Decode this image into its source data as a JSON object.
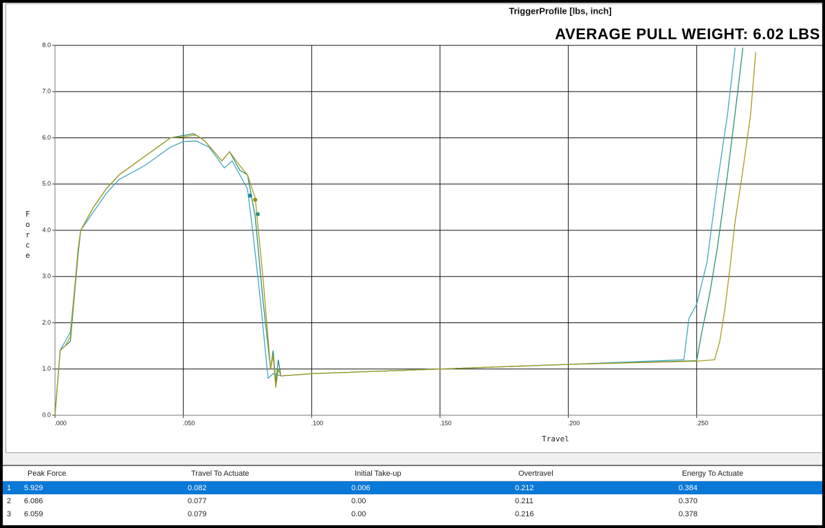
{
  "chart_data": {
    "type": "line",
    "title": "TriggerProfile [lbs, inch]",
    "annotation": "AVERAGE PULL WEIGHT: 6.02 LBS",
    "x_label": "Travel",
    "y_label": "Force",
    "xlim": [
      0,
      0.3
    ],
    "ylim": [
      0,
      8
    ],
    "xticks": [
      {
        "value": 0,
        "label": ".000"
      },
      {
        "value": 0.05,
        "label": ".050"
      },
      {
        "value": 0.1,
        "label": ".100"
      },
      {
        "value": 0.15,
        "label": ".150"
      },
      {
        "value": 0.2,
        "label": ".200"
      },
      {
        "value": 0.25,
        "label": ".250"
      }
    ],
    "yticks": [
      {
        "value": 0,
        "label": "0.0"
      },
      {
        "value": 1,
        "label": "1.0"
      },
      {
        "value": 2,
        "label": "2.0"
      },
      {
        "value": 3,
        "label": "3.0"
      },
      {
        "value": 4,
        "label": "4.0"
      },
      {
        "value": 5,
        "label": "5.0"
      },
      {
        "value": 6,
        "label": "6.0"
      },
      {
        "value": 7,
        "label": "7.0"
      },
      {
        "value": 8,
        "label": "8.0"
      }
    ],
    "grid": true,
    "series": [
      {
        "color": "#41a6bf",
        "x": [
          0,
          0.002,
          0.004,
          0.006,
          0.009,
          0.01,
          0.015,
          0.02,
          0.025,
          0.03,
          0.035,
          0.04,
          0.045,
          0.05,
          0.055,
          0.06,
          0.064,
          0.066,
          0.069,
          0.072,
          0.075,
          0.077,
          0.08,
          0.083,
          0.085,
          0.088,
          0.1,
          0.15,
          0.2,
          0.245,
          0.247,
          0.25,
          0.254,
          0.258,
          0.262,
          0.265
        ],
        "values": [
          0,
          1.4,
          1.6,
          1.8,
          3.5,
          4.0,
          4.4,
          4.8,
          5.1,
          5.25,
          5.4,
          5.6,
          5.8,
          5.92,
          5.93,
          5.8,
          5.5,
          5.35,
          5.5,
          5.2,
          4.9,
          4.0,
          2.5,
          0.8,
          0.9,
          0.85,
          0.9,
          1.0,
          1.1,
          1.2,
          2.1,
          2.4,
          3.3,
          5.0,
          6.5,
          7.95
        ]
      },
      {
        "color": "#2a8f7a",
        "x": [
          0,
          0.002,
          0.004,
          0.006,
          0.009,
          0.01,
          0.015,
          0.02,
          0.025,
          0.03,
          0.035,
          0.04,
          0.045,
          0.05,
          0.054,
          0.058,
          0.062,
          0.065,
          0.068,
          0.072,
          0.075,
          0.078,
          0.081,
          0.084,
          0.085,
          0.086,
          0.087,
          0.088,
          0.1,
          0.15,
          0.2,
          0.25,
          0.252,
          0.255,
          0.258,
          0.262,
          0.266,
          0.268
        ],
        "values": [
          0,
          1.4,
          1.5,
          1.6,
          3.5,
          4.0,
          4.5,
          4.9,
          5.2,
          5.4,
          5.6,
          5.8,
          6.0,
          6.05,
          6.09,
          5.95,
          5.7,
          5.5,
          5.7,
          5.3,
          5.2,
          4.3,
          2.5,
          1.0,
          1.4,
          0.7,
          1.2,
          0.85,
          0.9,
          1.0,
          1.1,
          1.18,
          1.8,
          2.6,
          3.6,
          5.2,
          7.0,
          7.95
        ]
      },
      {
        "color": "#a69a1e",
        "x": [
          0,
          0.002,
          0.004,
          0.006,
          0.009,
          0.01,
          0.015,
          0.02,
          0.025,
          0.03,
          0.035,
          0.04,
          0.045,
          0.05,
          0.055,
          0.058,
          0.062,
          0.065,
          0.068,
          0.072,
          0.075,
          0.078,
          0.081,
          0.084,
          0.085,
          0.086,
          0.087,
          0.088,
          0.1,
          0.15,
          0.2,
          0.25,
          0.257,
          0.259,
          0.261,
          0.263,
          0.265,
          0.268,
          0.271,
          0.273
        ],
        "values": [
          0,
          1.4,
          1.5,
          1.7,
          3.6,
          4.0,
          4.5,
          4.9,
          5.2,
          5.4,
          5.6,
          5.8,
          6.0,
          6.02,
          6.06,
          5.95,
          5.7,
          5.5,
          5.7,
          5.4,
          5.2,
          4.7,
          3.0,
          1.0,
          1.3,
          0.6,
          1.0,
          0.85,
          0.9,
          1.0,
          1.1,
          1.17,
          1.2,
          1.6,
          2.3,
          3.2,
          4.2,
          5.3,
          6.5,
          7.85
        ]
      }
    ],
    "markers": [
      {
        "x": 0.076,
        "y": 4.75,
        "color": "#1f7fa0"
      },
      {
        "x": 0.078,
        "y": 4.66,
        "color": "#9a8f10"
      },
      {
        "x": 0.079,
        "y": 4.35,
        "color": "#2a8f7a"
      }
    ]
  },
  "table": {
    "header": [
      "Peak Force",
      "Travel To Actuate",
      "Initial Take-up",
      "Overtravel",
      "Energy To Actuate"
    ],
    "rows": [
      [
        "1",
        "5.929",
        "0.082",
        "0.006",
        "0.212",
        "0.384"
      ],
      [
        "2",
        "6.086",
        "0.077",
        "0.00",
        "0.211",
        "0.370"
      ],
      [
        "3",
        "6.059",
        "0.079",
        "0.00",
        "0.216",
        "0.378"
      ]
    ]
  }
}
